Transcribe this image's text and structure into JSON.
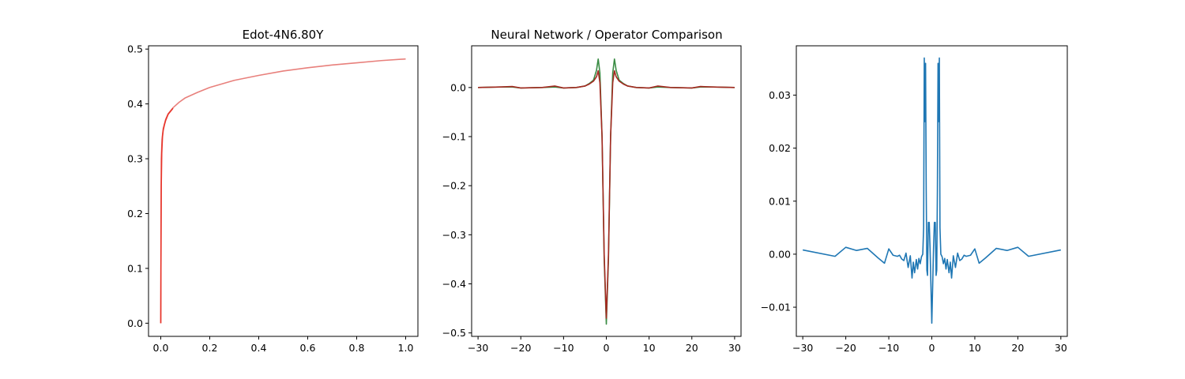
{
  "chart_data": [
    {
      "type": "line",
      "title": "Edot-4N6.80Y",
      "xlim": [
        -0.05,
        1.05
      ],
      "ylim": [
        -0.024,
        0.506
      ],
      "xticks": [
        0.0,
        0.2,
        0.4,
        0.6,
        0.8,
        1.0
      ],
      "xtick_labels": [
        "0.0",
        "0.2",
        "0.4",
        "0.6",
        "0.8",
        "1.0"
      ],
      "yticks": [
        0.0,
        0.1,
        0.2,
        0.3,
        0.4,
        0.5
      ],
      "ytick_labels": [
        "0.0",
        "0.1",
        "0.2",
        "0.3",
        "0.4",
        "0.5"
      ],
      "series": [
        {
          "color": "#e8807c",
          "x": [
            0,
            0.002,
            0.005,
            0.01,
            0.02,
            0.03,
            0.05,
            0.075,
            0.1,
            0.15,
            0.2,
            0.3,
            0.4,
            0.5,
            0.6,
            0.7,
            0.8,
            0.9,
            1.0
          ],
          "y": [
            0,
            0.3,
            0.335,
            0.355,
            0.372,
            0.382,
            0.393,
            0.403,
            0.411,
            0.421,
            0.43,
            0.443,
            0.452,
            0.46,
            0.466,
            0.471,
            0.475,
            0.479,
            0.482
          ]
        },
        {
          "color": "#e8342a",
          "x": [
            0,
            0.001,
            0.002,
            0.004,
            0.007,
            0.01,
            0.015,
            0.02,
            0.03,
            0.05
          ],
          "y": [
            0,
            0.15,
            0.25,
            0.31,
            0.34,
            0.352,
            0.362,
            0.37,
            0.381,
            0.392
          ]
        }
      ]
    },
    {
      "type": "line",
      "title": "Neural Network / Operator Comparison",
      "xlim": [
        -31.5,
        31.5
      ],
      "ylim": [
        -0.507,
        0.085
      ],
      "xticks": [
        -30,
        -20,
        -10,
        0,
        10,
        20,
        30
      ],
      "xtick_labels": [
        "−30",
        "−20",
        "−10",
        "0",
        "10",
        "20",
        "30"
      ],
      "yticks": [
        0.0,
        -0.1,
        -0.2,
        -0.3,
        -0.4,
        -0.5
      ],
      "ytick_labels": [
        "0.0",
        "−0.1",
        "−0.2",
        "−0.3",
        "−0.4",
        "−0.5"
      ],
      "series": [
        {
          "color": "#3a8c44",
          "x": [
            -30,
            -25,
            -22,
            -20,
            -15,
            -12,
            -10,
            -7,
            -5,
            -4,
            -3,
            -2.3,
            -1.9,
            -1.5,
            -1.0,
            -0.5,
            0,
            0.5,
            1.0,
            1.5,
            1.9,
            2.3,
            3,
            4,
            5,
            7,
            10,
            12,
            15,
            20,
            22,
            25,
            30
          ],
          "y": [
            0.0,
            0.001,
            0.001,
            -0.001,
            0.0,
            0.001,
            -0.001,
            0.0,
            0.003,
            0.008,
            0.015,
            0.035,
            0.058,
            0.03,
            -0.1,
            -0.35,
            -0.482,
            -0.35,
            -0.1,
            0.03,
            0.058,
            0.035,
            0.015,
            0.008,
            0.003,
            0.0,
            -0.001,
            0.001,
            0.0,
            -0.001,
            0.001,
            0.001,
            0.0
          ]
        },
        {
          "color": "#a52a22",
          "x": [
            -30,
            -25,
            -22,
            -20,
            -15,
            -12,
            -10,
            -7,
            -5,
            -4,
            -3,
            -2.3,
            -1.9,
            -1.5,
            -1.0,
            -0.5,
            0,
            0.5,
            1.0,
            1.5,
            1.9,
            2.3,
            3,
            4,
            5,
            7,
            10,
            12,
            15,
            20,
            22,
            25,
            30
          ],
          "y": [
            0.0,
            0.001,
            0.002,
            -0.001,
            0.0,
            0.003,
            -0.001,
            0.0,
            0.003,
            0.007,
            0.013,
            0.022,
            0.034,
            0.01,
            -0.1,
            -0.34,
            -0.47,
            -0.34,
            -0.1,
            0.01,
            0.034,
            0.022,
            0.013,
            0.007,
            0.003,
            0.0,
            -0.001,
            0.003,
            0.0,
            -0.001,
            0.002,
            0.001,
            0.0
          ]
        }
      ]
    },
    {
      "type": "line",
      "title": "",
      "xlim": [
        -31.5,
        31.5
      ],
      "ylim": [
        -0.0155,
        0.0393
      ],
      "xticks": [
        -30,
        -20,
        -10,
        0,
        10,
        20,
        30
      ],
      "xtick_labels": [
        "−30",
        "−20",
        "−10",
        "0",
        "10",
        "20",
        "30"
      ],
      "yticks": [
        0.03,
        0.02,
        0.01,
        0.0,
        -0.01
      ],
      "ytick_labels": [
        "0.03",
        "0.02",
        "0.01",
        "0.00",
        "−0.01"
      ],
      "series": [
        {
          "color": "#1f77b4",
          "x": [
            -30,
            -22.5,
            -20,
            -17.5,
            -15,
            -12.5,
            -11,
            -10,
            -9,
            -8,
            -7.5,
            -7,
            -6.5,
            -6,
            -5.5,
            -5,
            -4.6,
            -4.3,
            -4,
            -3.6,
            -3.3,
            -3,
            -2.7,
            -2.4,
            -2.1,
            -1.9,
            -1.75,
            -1.6,
            -1.45,
            -1.3,
            -1.15,
            -1.0,
            -0.8,
            -0.6,
            -0.4,
            -0.2,
            0,
            0.2,
            0.4,
            0.6,
            0.8,
            1.0,
            1.15,
            1.3,
            1.45,
            1.6,
            1.75,
            1.9,
            2.1,
            2.4,
            2.7,
            3,
            3.3,
            3.6,
            4,
            4.3,
            4.6,
            5,
            5.5,
            6,
            6.5,
            7,
            7.5,
            8,
            9,
            10,
            11,
            12.5,
            15,
            17.5,
            20,
            22.5,
            30
          ],
          "y": [
            0.0008,
            -0.0004,
            0.0013,
            0.0007,
            0.0011,
            -0.0007,
            -0.0017,
            0.001,
            -0.0002,
            -0.0004,
            -0.0002,
            -0.0009,
            -0.0012,
            0.0002,
            -0.0025,
            -0.0003,
            -0.0045,
            -0.0015,
            -0.0035,
            -0.001,
            -0.0028,
            -0.0008,
            -0.0018,
            -0.0005,
            0.0,
            0.005,
            0.037,
            0.025,
            0.036,
            0.012,
            -0.003,
            -0.004,
            0.006,
            0.006,
            0.001,
            -0.006,
            -0.013,
            -0.006,
            0.001,
            0.006,
            0.006,
            -0.004,
            -0.003,
            0.012,
            0.036,
            0.025,
            0.037,
            0.005,
            0.0,
            -0.0005,
            -0.0018,
            -0.0008,
            -0.0028,
            -0.001,
            -0.0035,
            -0.0015,
            -0.0045,
            -0.0003,
            -0.0025,
            0.0002,
            -0.0012,
            -0.0009,
            -0.0002,
            -0.0004,
            -0.0002,
            0.001,
            -0.0017,
            -0.0007,
            0.0011,
            0.0007,
            0.0013,
            -0.0004,
            0.0008
          ]
        }
      ]
    }
  ]
}
